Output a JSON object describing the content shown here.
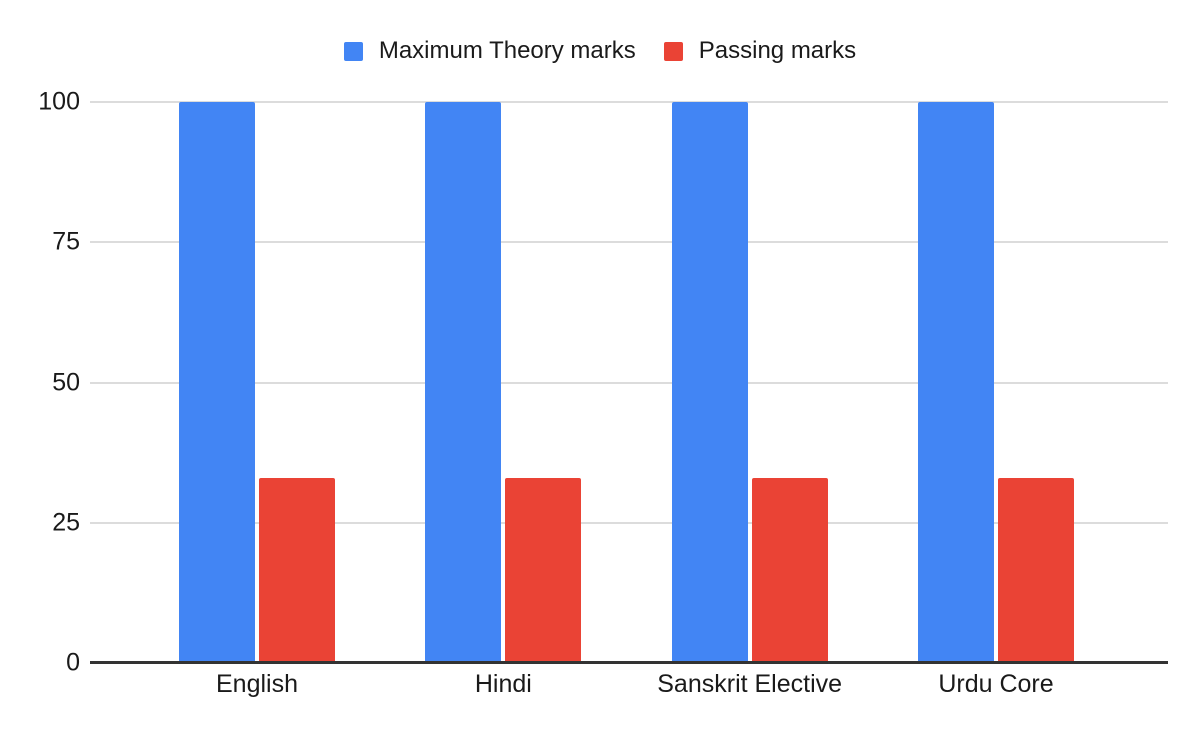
{
  "chart_data": {
    "type": "bar",
    "title": "",
    "xlabel": "",
    "ylabel": "",
    "categories": [
      "English",
      "Hindi",
      "Sanskrit Elective",
      "Urdu Core"
    ],
    "series": [
      {
        "name": "Maximum Theory marks",
        "color": "#4285F4",
        "values": [
          100,
          100,
          100,
          100
        ]
      },
      {
        "name": "Passing marks",
        "color": "#EA4335",
        "values": [
          33,
          33,
          33,
          33
        ]
      }
    ],
    "ylim": [
      0,
      100
    ],
    "yticks": [
      0,
      25,
      50,
      75,
      100
    ],
    "grid": true,
    "legend_position": "top"
  }
}
